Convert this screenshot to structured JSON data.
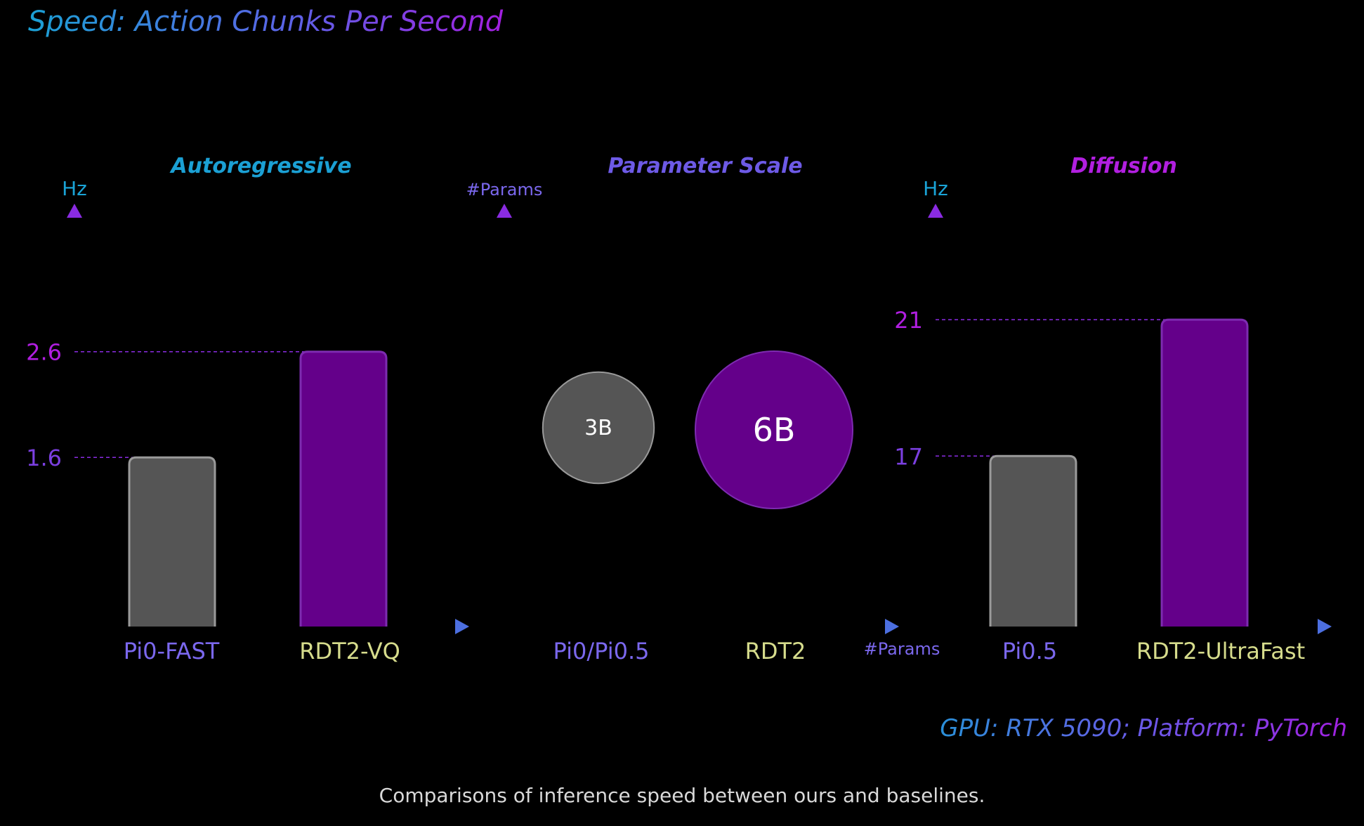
{
  "header": {
    "title": "Speed: Action Chunks Per Second"
  },
  "footer": {
    "gpu_note": "GPU: RTX 5090; Platform: PyTorch",
    "caption": "Comparisons of inference speed between ours and baselines."
  },
  "colors": {
    "background": "#000000",
    "baseline_bar": "#555555",
    "baseline_bar_border": "#9a9a9a",
    "ours_bar": "#64008a",
    "ours_bar_border": "#7d2bb0",
    "axis_cyan": "#1aa3d6",
    "axis_blue": "#4c6fe0",
    "axis_purple": "#8a2be2",
    "label_blue": "#7b68ee",
    "label_yellow": "#d6dc8c",
    "label_magenta": "#b01ee0",
    "title_cyan": "#1ba0d4",
    "title_violet": "#6d5ae6",
    "title_magenta": "#b21fe0"
  },
  "chart_data": [
    {
      "type": "bar",
      "title": "Autoregressive",
      "ylabel": "Hz",
      "categories": [
        "Pi0-FAST",
        "RDT2-VQ"
      ],
      "values": [
        1.6,
        2.6
      ],
      "value_labels": [
        "1.6",
        "2.6"
      ],
      "ylim": [
        0,
        4.0
      ]
    },
    {
      "type": "scatter",
      "title": "Parameter Scale",
      "ylabel": "#Params",
      "xlabel": "#Params",
      "categories": [
        "Pi0/Pi0.5",
        "RDT2"
      ],
      "values": [
        3,
        6
      ],
      "value_labels": [
        "3B",
        "6B"
      ],
      "unit": "B"
    },
    {
      "type": "bar",
      "title": "Diffusion",
      "ylabel": "Hz",
      "categories": [
        "Pi0.5",
        "RDT2-UltraFast"
      ],
      "values": [
        17,
        21
      ],
      "value_labels": [
        "17",
        "21"
      ],
      "ylim": [
        12,
        24.4
      ]
    }
  ]
}
